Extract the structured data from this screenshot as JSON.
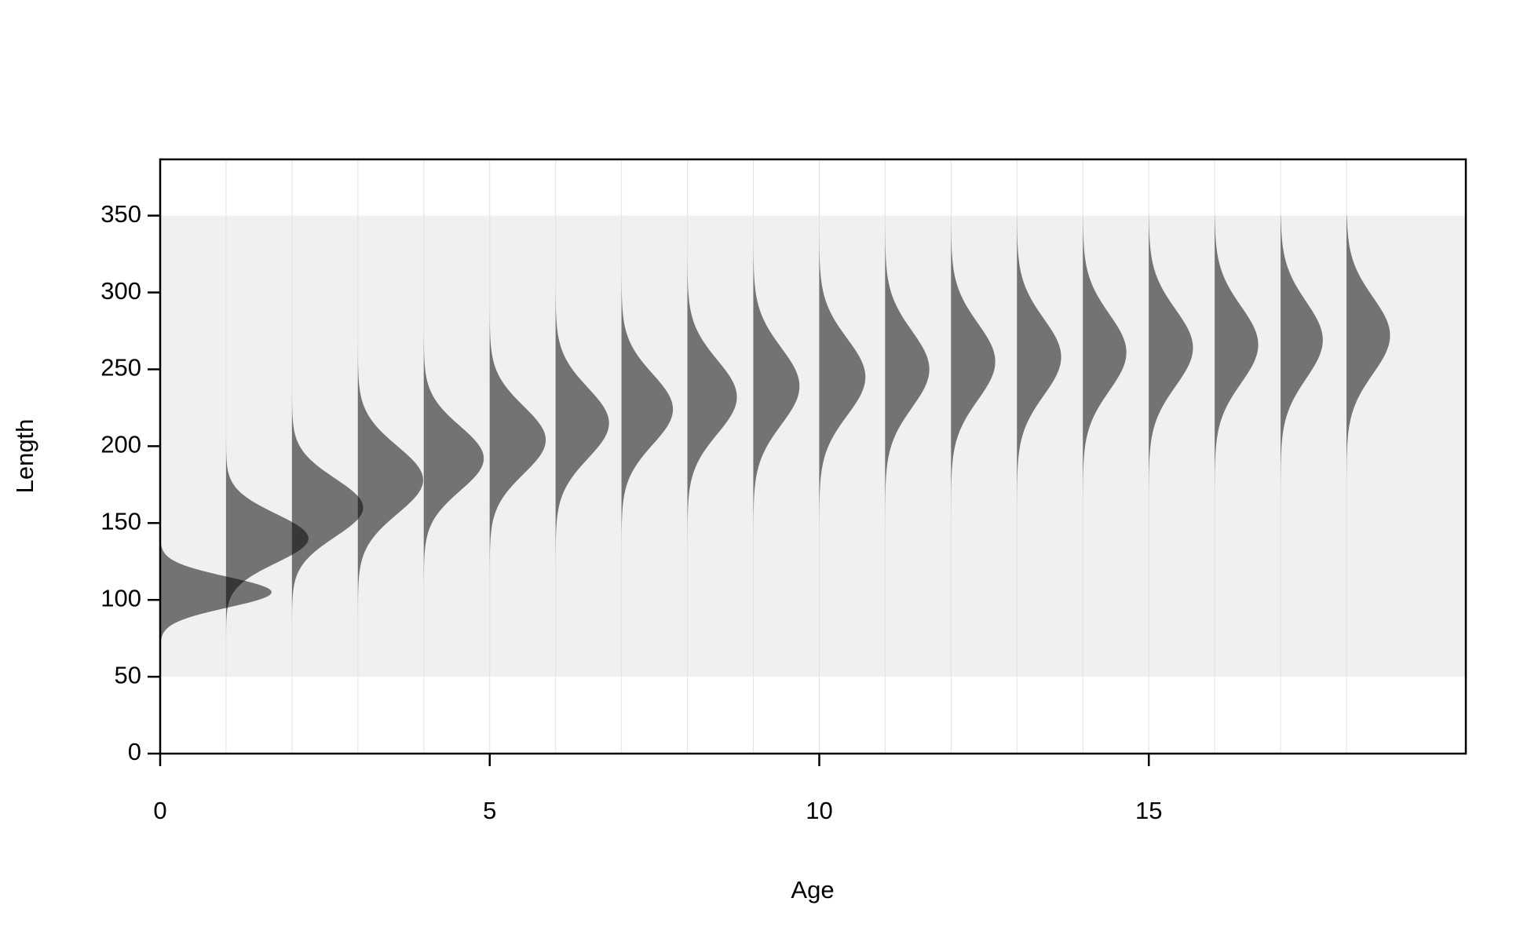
{
  "chart_data": {
    "type": "density-ridges",
    "x_label": "Age",
    "y_label": "Length",
    "x": [
      0,
      1,
      2,
      3,
      4,
      5,
      6,
      7,
      8,
      9,
      10,
      11,
      12,
      13,
      14,
      15,
      16,
      17,
      18
    ],
    "means": [
      105,
      140,
      160,
      178,
      192,
      204,
      215,
      224,
      232,
      239,
      245,
      250,
      255,
      258,
      261,
      264,
      266,
      269,
      272
    ],
    "sds": [
      10,
      16,
      19,
      22,
      21,
      22,
      23,
      23,
      24,
      25,
      25,
      25,
      25,
      25,
      25,
      25,
      25,
      25,
      25
    ],
    "peaks": [
      1.69,
      1.25,
      1.08,
      0.99,
      0.91,
      0.85,
      0.81,
      0.78,
      0.75,
      0.7,
      0.7,
      0.67,
      0.67,
      0.67,
      0.66,
      0.67,
      0.66,
      0.64,
      0.66
    ],
    "band": [
      50,
      350
    ],
    "band_color": "#f0f0f0",
    "color": "#000000",
    "xlim": [
      0,
      19.81
    ],
    "ylim": [
      0,
      386.6
    ],
    "xticks": [
      0,
      5,
      10,
      15
    ],
    "yticks": [
      0,
      50,
      100,
      150,
      200,
      250,
      300,
      350
    ],
    "grid": true
  }
}
